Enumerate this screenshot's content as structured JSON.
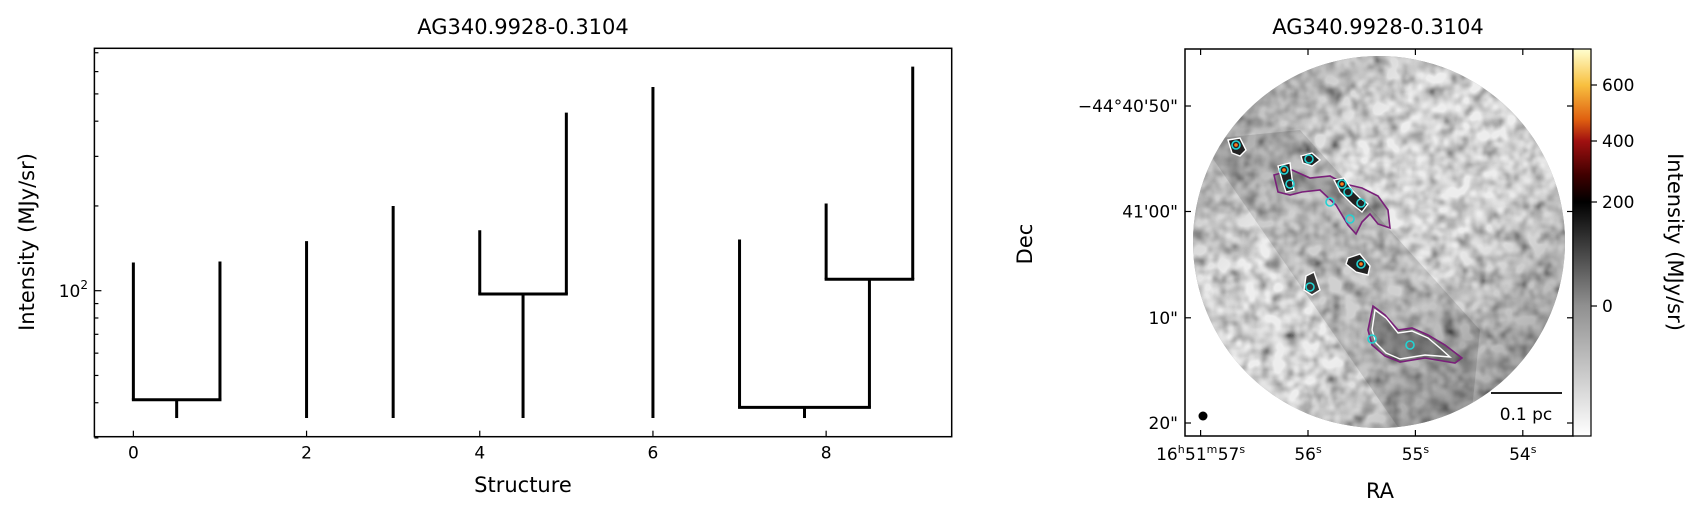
{
  "left_panel": {
    "title": "AG340.9928-0.3104",
    "xlabel": "Structure",
    "ylabel": "Intensity (MJy/sr)",
    "x_ticks": [
      "0",
      "2",
      "4",
      "6",
      "8"
    ],
    "y_tick": {
      "base": "10",
      "exp": "2"
    }
  },
  "chart_data": [
    {
      "type": "line",
      "subtype": "dendrogram",
      "title": "AG340.9928-0.3104",
      "xlabel": "Structure",
      "ylabel": "Intensity (MJy/sr)",
      "yscale": "log",
      "xlim": [
        -0.45,
        9.45
      ],
      "ylim": [
        30.3,
        726
      ],
      "x_ticks": [
        0,
        2,
        4,
        6,
        8
      ],
      "y_ticks": [
        100
      ],
      "grid": false,
      "nodes": [
        {
          "x": 0,
          "from": 41.0,
          "to": 126
        },
        {
          "x": 1,
          "from": 41.0,
          "to": 127
        },
        {
          "x": 0.5,
          "from": 35.3,
          "to": 41.0,
          "branch": [
            0,
            1
          ]
        },
        {
          "x": 2,
          "from": 35.3,
          "to": 150
        },
        {
          "x": 3,
          "from": 35.3,
          "to": 200
        },
        {
          "x": 4,
          "from": 97.3,
          "to": 164
        },
        {
          "x": 5,
          "from": 97.3,
          "to": 429
        },
        {
          "x": 4.5,
          "from": 35.3,
          "to": 97.3,
          "branch": [
            4,
            5
          ]
        },
        {
          "x": 6,
          "from": 35.3,
          "to": 529
        },
        {
          "x": 7,
          "from": 38.5,
          "to": 152
        },
        {
          "x": 8,
          "from": 109.8,
          "to": 204
        },
        {
          "x": 9,
          "from": 109.8,
          "to": 625
        },
        {
          "x": 8.5,
          "from": 38.5,
          "to": 109.8,
          "branch": [
            8,
            9
          ]
        },
        {
          "x": 7.75,
          "from": 35.3,
          "to": 38.5,
          "branch": [
            7,
            8.5
          ]
        }
      ]
    },
    {
      "type": "heatmap",
      "title": "AG340.9928-0.3104",
      "xlabel": "RA",
      "ylabel": "Dec",
      "colorbar_label": "Intensity (MJy/sr)",
      "colorbar_ticks": [
        "600",
        "400",
        "200",
        "0"
      ],
      "colormap": [
        "#ffffff",
        "#909090",
        "#000000",
        "#400000",
        "#a01010",
        "#e06010",
        "#f8c040",
        "#ffffd0"
      ]
    }
  ],
  "right_panel": {
    "title": "AG340.9928-0.3104",
    "xlabel": "RA",
    "ylabel": "Dec",
    "colorbar_label": "Intensity (MJy/sr)",
    "colorbar_ticks": [
      "600",
      "400",
      "200",
      "0"
    ],
    "ra_ticks": [
      [
        {
          "t": "16"
        },
        {
          "t": "h",
          "sup": true
        },
        {
          "t": "51"
        },
        {
          "t": "m",
          "sup": true
        },
        {
          "t": "57"
        },
        {
          "t": "s",
          "sup": true
        }
      ],
      [
        {
          "t": "56"
        },
        {
          "t": "s",
          "sup": true
        }
      ],
      [
        {
          "t": "55"
        },
        {
          "t": "s",
          "sup": true
        }
      ],
      [
        {
          "t": "54"
        },
        {
          "t": "s",
          "sup": true
        }
      ]
    ],
    "dec_ticks": [
      "−44°40'50\"",
      "41'00\"",
      "10\"",
      "20\""
    ],
    "scale_bar_label": "0.1 pc",
    "colors": {
      "contour_outer": "#7a1f7a",
      "contour_inner": "#ffffff",
      "source_marker": "#22d3d3",
      "peak_marker": "#ff7a1a"
    }
  }
}
